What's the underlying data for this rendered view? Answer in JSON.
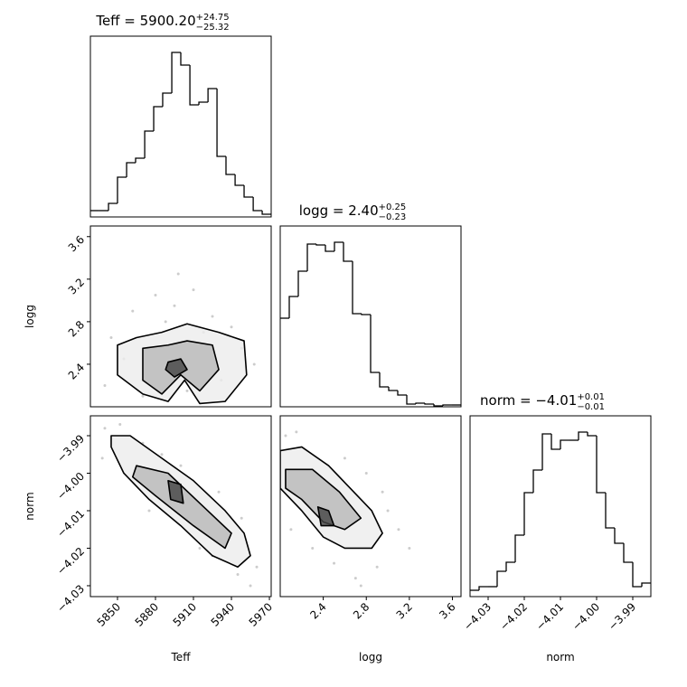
{
  "chart_data": [
    {
      "type": "histogram",
      "title": "Teff = 5900.20",
      "title_sup": "+24.75",
      "title_sub": "−25.32",
      "bins": [
        5828.6,
        5835.7,
        5842.9,
        5850.0,
        5857.2,
        5864.3,
        5871.5,
        5878.6,
        5885.7,
        5892.9,
        5900.0,
        5907.2,
        5914.3,
        5921.5,
        5928.6,
        5935.7,
        5942.9,
        5950.0,
        5957.2,
        5964.3,
        5971.4
      ],
      "counts": [
        7,
        7,
        15,
        44,
        60,
        65,
        95,
        122,
        137,
        182,
        168,
        124,
        127,
        142,
        67,
        47,
        35,
        22,
        7,
        3
      ],
      "xlim": [
        5828.6,
        5971.4
      ],
      "ylim": [
        0,
        200
      ],
      "color": "#000000"
    },
    {
      "type": "contour",
      "xlim": [
        5828.6,
        5971.4
      ],
      "ylim": [
        2.0,
        3.7
      ],
      "yticks": [
        2.4,
        2.8,
        3.2,
        3.6
      ],
      "ylabel": "logg",
      "points": {
        "x": [
          5840,
          5855,
          5862,
          5880,
          5895,
          5910,
          5925,
          5940,
          5948,
          5870,
          5905,
          5932,
          5888,
          5918,
          5958,
          5845,
          5898,
          5915
        ],
        "y": [
          2.2,
          2.45,
          2.9,
          3.05,
          2.95,
          3.1,
          2.85,
          2.75,
          2.55,
          2.1,
          2.15,
          2.25,
          2.8,
          2.7,
          2.4,
          2.65,
          3.25,
          2.05
        ]
      },
      "contours": [
        {
          "x": [
            5850,
            5865,
            5885,
            5905,
            5930,
            5950,
            5952,
            5935,
            5915,
            5903,
            5890,
            5870,
            5850
          ],
          "y": [
            2.58,
            2.65,
            2.7,
            2.78,
            2.7,
            2.62,
            2.3,
            2.05,
            2.03,
            2.25,
            2.05,
            2.12,
            2.3
          ]
        },
        {
          "x": [
            5870,
            5890,
            5905,
            5925,
            5930,
            5915,
            5900,
            5885,
            5870
          ],
          "y": [
            2.55,
            2.58,
            2.62,
            2.58,
            2.35,
            2.15,
            2.3,
            2.12,
            2.25
          ]
        },
        {
          "x": [
            5890,
            5900,
            5905,
            5895,
            5888
          ],
          "y": [
            2.42,
            2.45,
            2.35,
            2.28,
            2.35
          ]
        }
      ]
    },
    {
      "type": "histogram",
      "title": "logg = 2.40",
      "title_sup": "+0.25",
      "title_sub": "−0.23",
      "bins": [
        2.0,
        2.084,
        2.168,
        2.252,
        2.336,
        2.42,
        2.504,
        2.588,
        2.672,
        2.756,
        2.84,
        2.924,
        3.008,
        3.092,
        3.176,
        3.26,
        3.344,
        3.428,
        3.512,
        3.596,
        3.68
      ],
      "counts": [
        98,
        122,
        150,
        180,
        179,
        172,
        182,
        161,
        103,
        102,
        38,
        22,
        18,
        13,
        3,
        4,
        3,
        1,
        2,
        2
      ],
      "xlim": [
        2.0,
        3.68
      ],
      "ylim": [
        0,
        200
      ],
      "color": "#000000"
    },
    {
      "type": "contour",
      "xlim": [
        5828.6,
        5971.4
      ],
      "ylim": [
        -4.0329,
        -3.9847
      ],
      "xticks": [
        5850,
        5880,
        5910,
        5940,
        5970
      ],
      "yticks": [
        {
          "value": -3.99,
          "label": "−3.99"
        },
        {
          "value": -4.0,
          "label": "−4.00"
        },
        {
          "value": -4.01,
          "label": "−4.01"
        },
        {
          "value": -4.02,
          "label": "−4.02"
        },
        {
          "value": -4.03,
          "label": "−4.03"
        }
      ],
      "xlabel": "Teff",
      "ylabel": "norm",
      "points": {
        "x": [
          5840,
          5852,
          5870,
          5885,
          5905,
          5925,
          5945,
          5955,
          5960,
          5838,
          5900,
          5930,
          5875,
          5915,
          5948
        ],
        "y": [
          -3.988,
          -3.987,
          -3.992,
          -3.995,
          -4.012,
          -4.022,
          -4.027,
          -4.03,
          -4.025,
          -3.996,
          -3.998,
          -4.005,
          -4.01,
          -4.02,
          -4.012
        ]
      },
      "contours": [
        {
          "x": [
            5845,
            5860,
            5885,
            5910,
            5935,
            5950,
            5955,
            5945,
            5925,
            5900,
            5875,
            5855,
            5845
          ],
          "y": [
            -3.99,
            -3.99,
            -3.996,
            -4.002,
            -4.01,
            -4.016,
            -4.022,
            -4.025,
            -4.022,
            -4.014,
            -4.007,
            -4.0,
            -3.993
          ]
        },
        {
          "x": [
            5865,
            5890,
            5915,
            5940,
            5935,
            5910,
            5880,
            5862
          ],
          "y": [
            -3.998,
            -4.0,
            -4.008,
            -4.016,
            -4.02,
            -4.014,
            -4.006,
            -4.001
          ]
        },
        {
          "x": [
            5890,
            5900,
            5902,
            5892
          ],
          "y": [
            -4.002,
            -4.003,
            -4.008,
            -4.007
          ]
        }
      ]
    },
    {
      "type": "contour",
      "xlim": [
        2.0,
        3.68
      ],
      "ylim": [
        -4.0329,
        -3.9847
      ],
      "xticks": [
        2.4,
        2.8,
        3.2,
        3.6
      ],
      "xlabel": "logg",
      "points": {
        "x": [
          2.05,
          2.15,
          2.6,
          2.8,
          3.0,
          3.1,
          2.9,
          2.7,
          2.5,
          2.3,
          3.2,
          2.95,
          2.1,
          2.75
        ],
        "y": [
          -3.99,
          -3.989,
          -3.996,
          -4.0,
          -4.01,
          -4.015,
          -4.025,
          -4.028,
          -4.024,
          -4.02,
          -4.02,
          -4.005,
          -4.015,
          -4.03
        ]
      },
      "contours": [
        {
          "x": [
            2.0,
            2.2,
            2.45,
            2.65,
            2.85,
            2.95,
            2.85,
            2.6,
            2.4,
            2.2,
            2.0
          ],
          "y": [
            -3.994,
            -3.993,
            -3.998,
            -4.004,
            -4.01,
            -4.016,
            -4.02,
            -4.02,
            -4.017,
            -4.01,
            -4.004
          ]
        },
        {
          "x": [
            2.05,
            2.3,
            2.55,
            2.75,
            2.6,
            2.4,
            2.2,
            2.05
          ],
          "y": [
            -3.999,
            -3.999,
            -4.005,
            -4.012,
            -4.015,
            -4.013,
            -4.007,
            -4.004
          ]
        },
        {
          "x": [
            2.35,
            2.45,
            2.5,
            2.38
          ],
          "y": [
            -4.009,
            -4.01,
            -4.014,
            -4.014
          ]
        }
      ]
    },
    {
      "type": "histogram",
      "title": "norm = −4.01",
      "title_sup": "+0.01",
      "title_sub": "−0.01",
      "bins": [
        -4.035,
        -4.0325,
        -4.03,
        -4.0275,
        -4.025,
        -4.0225,
        -4.02,
        -4.0175,
        -4.015,
        -4.0125,
        -4.01,
        -4.0075,
        -4.005,
        -4.0025,
        -4.0,
        -3.9975,
        -3.995,
        -3.9925,
        -3.99,
        -3.9875,
        -3.985
      ],
      "counts": [
        7,
        11,
        11,
        28,
        38,
        68,
        115,
        140,
        180,
        163,
        173,
        173,
        182,
        178,
        115,
        76,
        59,
        38,
        11,
        15
      ],
      "xlim": [
        -4.035,
        -3.985
      ],
      "ylim": [
        0,
        200
      ],
      "color": "#000000",
      "xticks": [
        {
          "value": -4.03,
          "label": "−4.03"
        },
        {
          "value": -4.02,
          "label": "−4.02"
        },
        {
          "value": -4.01,
          "label": "−4.01"
        },
        {
          "value": -4.0,
          "label": "−4.00"
        },
        {
          "value": -3.99,
          "label": "−3.99"
        }
      ],
      "xlabel": "norm"
    }
  ]
}
